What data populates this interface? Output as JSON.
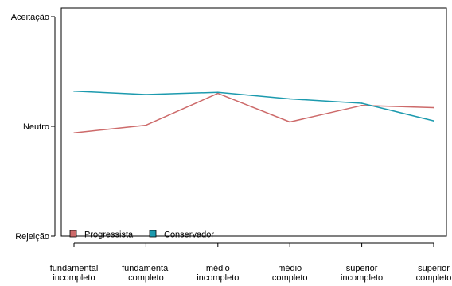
{
  "chart_data": {
    "type": "line",
    "title": "",
    "xlabel": "",
    "ylabel": "",
    "categories": [
      [
        "fundamental",
        "incompleto"
      ],
      [
        "fundamental",
        "completo"
      ],
      [
        "médio",
        "incompleto"
      ],
      [
        "médio",
        "completo"
      ],
      [
        "superior",
        "incompleto"
      ],
      [
        "superior",
        "completo"
      ]
    ],
    "y_ticks": [
      {
        "label": "Rejeição",
        "value": -1
      },
      {
        "label": "Neutro",
        "value": 0
      },
      {
        "label": "Aceitação",
        "value": 1
      }
    ],
    "ylim": [
      -1,
      1
    ],
    "legend_position": "bottom-left",
    "series": [
      {
        "name": "Progressista",
        "color": "#CD6A6A",
        "values": [
          -0.06,
          0.01,
          0.3,
          0.04,
          0.19,
          0.17
        ]
      },
      {
        "name": "Conservador",
        "color": "#1C9AAE",
        "values": [
          0.32,
          0.29,
          0.31,
          0.25,
          0.21,
          0.05
        ]
      }
    ]
  }
}
